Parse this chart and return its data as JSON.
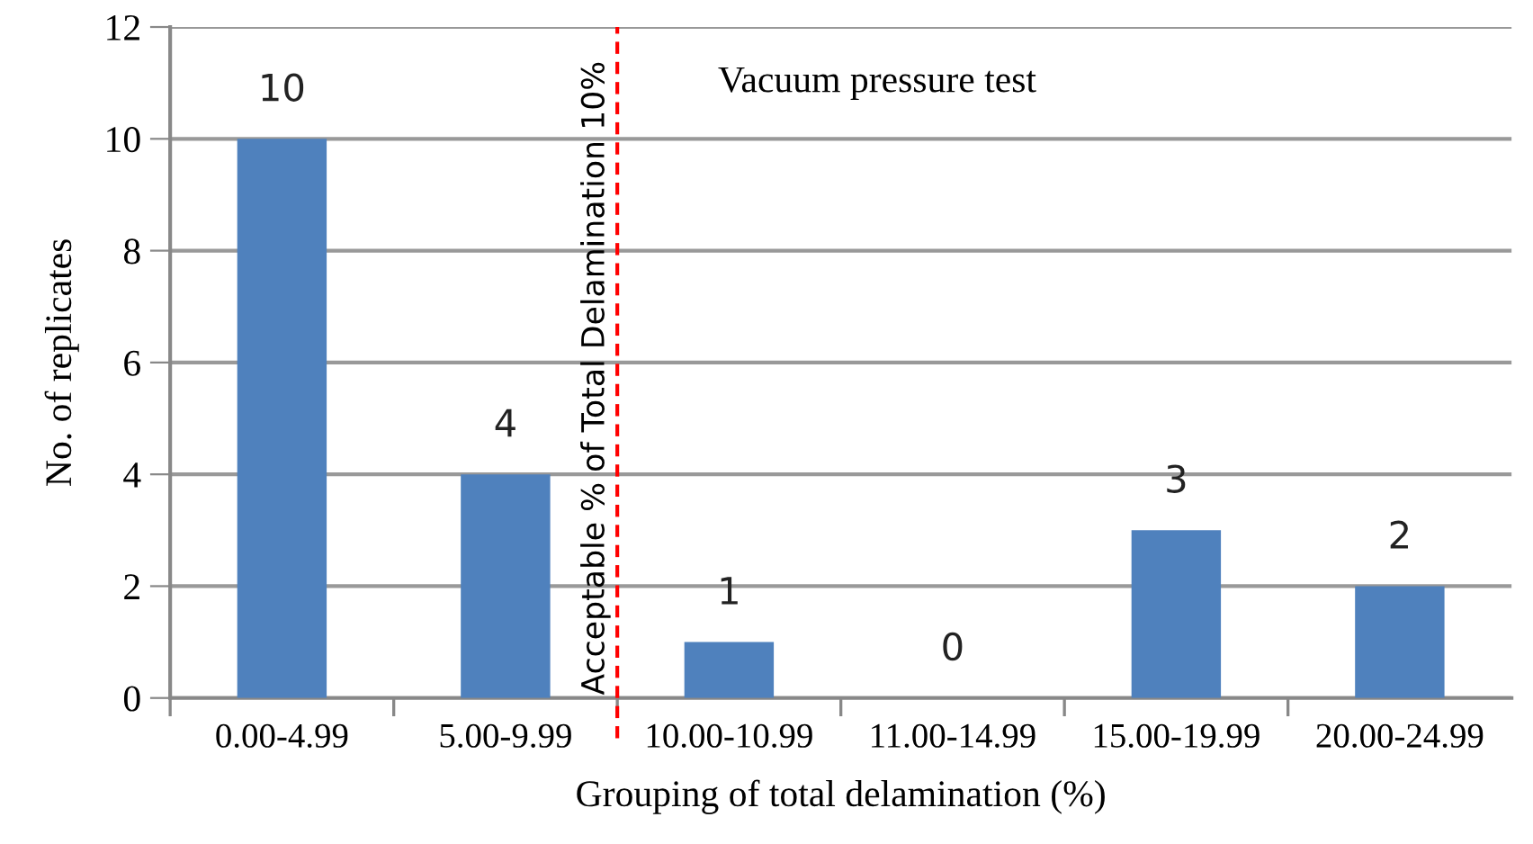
{
  "chart_data": {
    "type": "bar",
    "title": "Vacuum pressure test",
    "xlabel": "Grouping of total delamination (%)",
    "ylabel": "No. of replicates",
    "categories": [
      "0.00-4.99",
      "5.00-9.99",
      "10.00-10.99",
      "11.00-14.99",
      "15.00-19.99",
      "20.00-24.99"
    ],
    "values": [
      10,
      4,
      1,
      0,
      3,
      2
    ],
    "color": "#4f81bd",
    "ylim": [
      0,
      12
    ],
    "yticks": [
      0,
      2,
      4,
      6,
      8,
      10,
      12
    ],
    "grid": "y",
    "data_labels": true,
    "annotations": [
      "Acceptable % of Total Delamination 10%"
    ]
  }
}
